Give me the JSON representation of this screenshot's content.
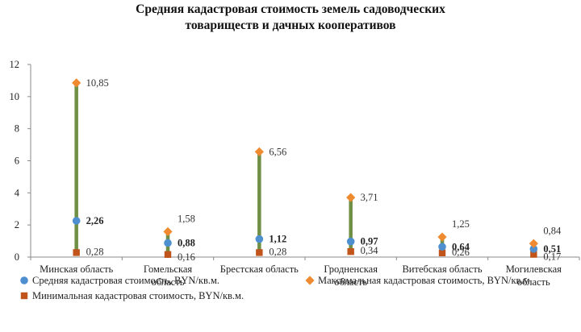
{
  "chart_data": {
    "type": "line",
    "title_lines": [
      "Средняя кадастровая стоимость земель садоводческих",
      "товариществ и дачных кооперативов"
    ],
    "categories": [
      [
        "Минская область"
      ],
      [
        "Гомельская",
        "область"
      ],
      [
        "Брестская область"
      ],
      [
        "Гродненская",
        "область"
      ],
      [
        "Витебская область"
      ],
      [
        "Могилевская",
        "область"
      ]
    ],
    "ylim": [
      0,
      12
    ],
    "yticks": [
      "0",
      "2",
      "4",
      "6",
      "8",
      "10",
      "12"
    ],
    "grid": false,
    "legend_position": "bottom",
    "series": [
      {
        "name": "Средняя кадастровая стоимость, BYN/кв.м.",
        "values": [
          2.26,
          0.88,
          1.12,
          0.97,
          0.64,
          0.51
        ],
        "labels": [
          "2,26",
          "0,88",
          "1,12",
          "0,97",
          "0,64",
          "0,51"
        ],
        "marker": "circle",
        "color": "#4e8fd0"
      },
      {
        "name": "Максимальная кадастровая стоимость, BYN/кв.м.",
        "values": [
          10.85,
          1.58,
          6.56,
          3.71,
          1.25,
          0.84
        ],
        "labels": [
          "10,85",
          "1,58",
          "6,56",
          "3,71",
          "1,25",
          "0,84"
        ],
        "marker": "diamond",
        "color": "#f08a30"
      },
      {
        "name": "Минимальная кадастровая стоимость, BYN/кв.м.",
        "values": [
          0.28,
          0.16,
          0.28,
          0.34,
          0.26,
          0.17
        ],
        "labels": [
          "0,28",
          "0,16",
          "0,28",
          "0,34",
          "0,26",
          "0,17"
        ],
        "marker": "square",
        "color": "#c0541a"
      }
    ],
    "range_line_color": "#6f8f44"
  }
}
